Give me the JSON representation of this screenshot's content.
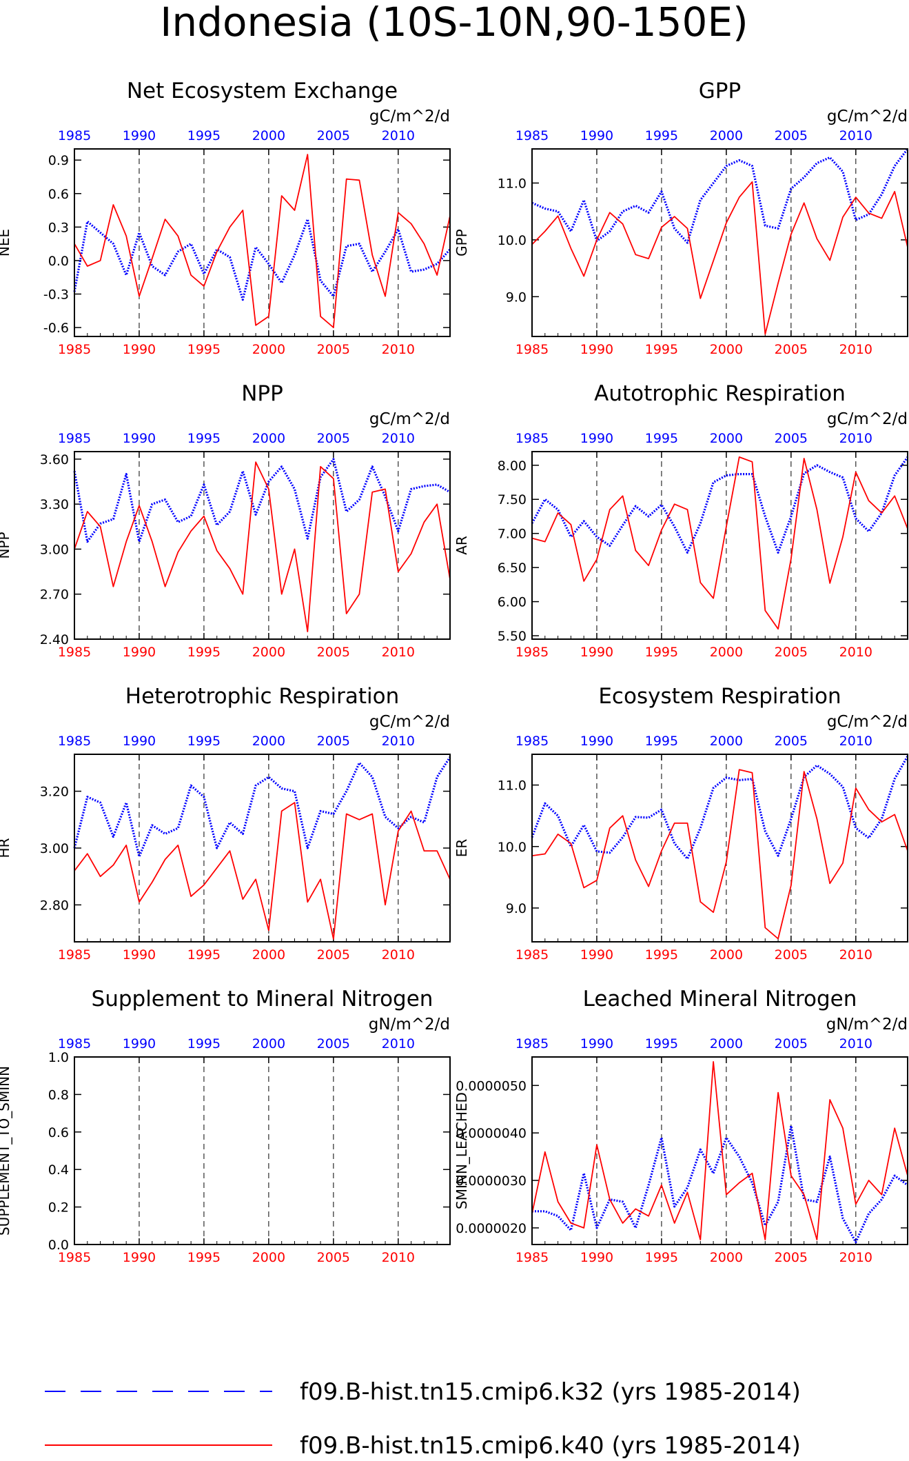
{
  "page_title": "Indonesia (10S-10N,90-150E)",
  "colors": {
    "k32": "#0000ff",
    "k40": "#ff0000",
    "frame": "#000000",
    "grid": "#000000"
  },
  "legend": {
    "items": [
      {
        "label": "f09.B-hist.tn15.cmip6.k32 (yrs 1985-2014)",
        "color": "#0000ff",
        "style": "dashed"
      },
      {
        "label": "f09.B-hist.tn15.cmip6.k40 (yrs 1985-2014)",
        "color": "#ff0000",
        "style": "solid"
      }
    ]
  },
  "chart_data": [
    {
      "type": "line",
      "title": "Net Ecosystem Exchange",
      "units": "gC/m^2/d",
      "ylabel": "NEE",
      "ylim": [
        -0.68,
        1.0
      ],
      "yticks": [
        -0.6,
        -0.3,
        0.0,
        0.3,
        0.6,
        0.9
      ],
      "yticklabels": [
        "-0.6",
        "-0.3",
        "0.0",
        "0.3",
        "0.6",
        "0.9"
      ],
      "xlim": [
        1985,
        2014
      ],
      "xticks": [
        1985,
        1990,
        1995,
        2000,
        2005,
        2010
      ],
      "x": [
        1985,
        1986,
        1987,
        1988,
        1989,
        1990,
        1991,
        1992,
        1993,
        1994,
        1995,
        1996,
        1997,
        1998,
        1999,
        2000,
        2001,
        2002,
        2003,
        2004,
        2005,
        2006,
        2007,
        2008,
        2009,
        2010,
        2011,
        2012,
        2013,
        2014
      ],
      "series": [
        {
          "name": "f09.B-hist.tn15.cmip6.k32",
          "color": "#0000ff",
          "values": [
            -0.28,
            0.35,
            0.25,
            0.15,
            -0.13,
            0.25,
            -0.05,
            -0.13,
            0.08,
            0.15,
            -0.12,
            0.1,
            0.03,
            -0.35,
            0.12,
            -0.03,
            -0.2,
            0.05,
            0.37,
            -0.18,
            -0.32,
            0.13,
            0.15,
            -0.1,
            0.08,
            0.28,
            -0.1,
            -0.08,
            -0.03,
            0.1
          ]
        },
        {
          "name": "f09.B-hist.tn15.cmip6.k40",
          "color": "#ff0000",
          "values": [
            0.15,
            -0.05,
            0.0,
            0.5,
            0.22,
            -0.32,
            0.02,
            0.37,
            0.22,
            -0.13,
            -0.23,
            0.08,
            0.3,
            0.45,
            -0.58,
            -0.5,
            0.58,
            0.45,
            0.95,
            -0.5,
            -0.6,
            0.73,
            0.72,
            0.05,
            -0.32,
            0.43,
            0.33,
            0.15,
            -0.13,
            0.4
          ]
        }
      ]
    },
    {
      "type": "line",
      "title": "GPP",
      "units": "gC/m^2/d",
      "ylabel": "GPP",
      "ylim": [
        8.3,
        11.6
      ],
      "yticks": [
        9.0,
        10.0,
        11.0
      ],
      "yticklabels": [
        "9.0",
        "10.0",
        "11.0"
      ],
      "xlim": [
        1985,
        2014
      ],
      "xticks": [
        1985,
        1990,
        1995,
        2000,
        2005,
        2010
      ],
      "x": [
        1985,
        1986,
        1987,
        1988,
        1989,
        1990,
        1991,
        1992,
        1993,
        1994,
        1995,
        1996,
        1997,
        1998,
        1999,
        2000,
        2001,
        2002,
        2003,
        2004,
        2005,
        2006,
        2007,
        2008,
        2009,
        2010,
        2011,
        2012,
        2013,
        2014
      ],
      "series": [
        {
          "name": "f09.B-hist.tn15.cmip6.k32",
          "color": "#0000ff",
          "values": [
            10.65,
            10.55,
            10.5,
            10.15,
            10.7,
            9.98,
            10.15,
            10.5,
            10.6,
            10.48,
            10.85,
            10.2,
            9.95,
            10.7,
            11.0,
            11.3,
            11.4,
            11.3,
            10.25,
            10.2,
            10.9,
            11.1,
            11.35,
            11.45,
            11.2,
            10.35,
            10.45,
            10.8,
            11.3,
            11.6
          ]
        },
        {
          "name": "f09.B-hist.tn15.cmip6.k40",
          "color": "#ff0000",
          "values": [
            9.92,
            10.15,
            10.42,
            9.85,
            9.36,
            10.0,
            10.48,
            10.28,
            9.74,
            9.67,
            10.22,
            10.41,
            10.2,
            8.97,
            9.63,
            10.3,
            10.75,
            11.02,
            8.34,
            9.24,
            10.1,
            10.65,
            10.02,
            9.64,
            10.4,
            10.75,
            10.47,
            10.38,
            10.85,
            9.87
          ]
        }
      ]
    },
    {
      "type": "line",
      "title": "NPP",
      "units": "gC/m^2/d",
      "ylabel": "NPP",
      "ylim": [
        2.4,
        3.65
      ],
      "yticks": [
        2.4,
        2.7,
        3.0,
        3.3,
        3.6
      ],
      "yticklabels": [
        "2.40",
        "2.70",
        "3.00",
        "3.30",
        "3.60"
      ],
      "xlim": [
        1985,
        2014
      ],
      "xticks": [
        1985,
        1990,
        1995,
        2000,
        2005,
        2010
      ],
      "x": [
        1985,
        1986,
        1987,
        1988,
        1989,
        1990,
        1991,
        1992,
        1993,
        1994,
        1995,
        1996,
        1997,
        1998,
        1999,
        2000,
        2001,
        2002,
        2003,
        2004,
        2005,
        2006,
        2007,
        2008,
        2009,
        2010,
        2011,
        2012,
        2013,
        2014
      ],
      "series": [
        {
          "name": "f09.B-hist.tn15.cmip6.k32",
          "color": "#0000ff",
          "values": [
            3.52,
            3.05,
            3.17,
            3.2,
            3.5,
            3.05,
            3.3,
            3.33,
            3.18,
            3.22,
            3.43,
            3.16,
            3.25,
            3.52,
            3.23,
            3.45,
            3.55,
            3.4,
            3.07,
            3.48,
            3.6,
            3.25,
            3.33,
            3.55,
            3.35,
            3.12,
            3.4,
            3.42,
            3.43,
            3.38
          ]
        },
        {
          "name": "f09.B-hist.tn15.cmip6.k40",
          "color": "#ff0000",
          "values": [
            3.0,
            3.25,
            3.15,
            2.75,
            3.05,
            3.29,
            3.05,
            2.75,
            2.98,
            3.12,
            3.22,
            2.99,
            2.87,
            2.7,
            3.58,
            3.4,
            2.7,
            3.0,
            2.45,
            3.55,
            3.47,
            2.57,
            2.7,
            3.38,
            3.4,
            2.85,
            2.97,
            3.18,
            3.3,
            2.8
          ]
        }
      ]
    },
    {
      "type": "line",
      "title": "Autotrophic Respiration",
      "units": "gC/m^2/d",
      "ylabel": "AR",
      "ylim": [
        5.45,
        8.2
      ],
      "yticks": [
        5.5,
        6.0,
        6.5,
        7.0,
        7.5,
        8.0
      ],
      "yticklabels": [
        "5.50",
        "6.00",
        "6.50",
        "7.00",
        "7.50",
        "8.00"
      ],
      "xlim": [
        1985,
        2014
      ],
      "xticks": [
        1985,
        1990,
        1995,
        2000,
        2005,
        2010
      ],
      "x": [
        1985,
        1986,
        1987,
        1988,
        1989,
        1990,
        1991,
        1992,
        1993,
        1994,
        1995,
        1996,
        1997,
        1998,
        1999,
        2000,
        2001,
        2002,
        2003,
        2004,
        2005,
        2006,
        2007,
        2008,
        2009,
        2010,
        2011,
        2012,
        2013,
        2014
      ],
      "series": [
        {
          "name": "f09.B-hist.tn15.cmip6.k32",
          "color": "#0000ff",
          "values": [
            7.15,
            7.5,
            7.35,
            6.95,
            7.18,
            6.95,
            6.82,
            7.12,
            7.4,
            7.25,
            7.42,
            7.1,
            6.72,
            7.15,
            7.75,
            7.85,
            7.87,
            7.87,
            7.25,
            6.72,
            7.25,
            7.88,
            8.0,
            7.9,
            7.82,
            7.22,
            7.03,
            7.3,
            7.85,
            8.12
          ]
        },
        {
          "name": "f09.B-hist.tn15.cmip6.k40",
          "color": "#ff0000",
          "values": [
            6.93,
            6.88,
            7.3,
            7.13,
            6.3,
            6.62,
            7.35,
            7.55,
            6.75,
            6.53,
            7.05,
            7.43,
            7.35,
            6.28,
            6.05,
            7.1,
            8.12,
            8.05,
            5.87,
            5.6,
            6.63,
            8.1,
            7.35,
            6.27,
            6.95,
            7.9,
            7.48,
            7.3,
            7.55,
            7.07
          ]
        }
      ]
    },
    {
      "type": "line",
      "title": "Heterotrophic Respiration",
      "units": "gC/m^2/d",
      "ylabel": "HR",
      "ylim": [
        2.67,
        3.33
      ],
      "yticks": [
        2.8,
        3.0,
        3.2
      ],
      "yticklabels": [
        "2.80",
        "3.00",
        "3.20"
      ],
      "xlim": [
        1985,
        2014
      ],
      "xticks": [
        1985,
        1990,
        1995,
        2000,
        2005,
        2010
      ],
      "x": [
        1985,
        1986,
        1987,
        1988,
        1989,
        1990,
        1991,
        1992,
        1993,
        1994,
        1995,
        1996,
        1997,
        1998,
        1999,
        2000,
        2001,
        2002,
        2003,
        2004,
        2005,
        2006,
        2007,
        2008,
        2009,
        2010,
        2011,
        2012,
        2013,
        2014
      ],
      "series": [
        {
          "name": "f09.B-hist.tn15.cmip6.k32",
          "color": "#0000ff",
          "values": [
            3.0,
            3.18,
            3.16,
            3.04,
            3.16,
            2.97,
            3.08,
            3.05,
            3.07,
            3.22,
            3.18,
            3.0,
            3.09,
            3.05,
            3.22,
            3.25,
            3.21,
            3.2,
            3.0,
            3.13,
            3.12,
            3.2,
            3.3,
            3.25,
            3.11,
            3.07,
            3.11,
            3.09,
            3.25,
            3.32
          ]
        },
        {
          "name": "f09.B-hist.tn15.cmip6.k40",
          "color": "#ff0000",
          "values": [
            2.92,
            2.98,
            2.9,
            2.94,
            3.01,
            2.81,
            2.88,
            2.96,
            3.01,
            2.83,
            2.87,
            2.93,
            2.99,
            2.82,
            2.89,
            2.71,
            3.13,
            3.16,
            2.81,
            2.89,
            2.68,
            3.12,
            3.1,
            3.12,
            2.8,
            3.06,
            3.13,
            2.99,
            2.99,
            2.89
          ]
        }
      ]
    },
    {
      "type": "line",
      "title": "Ecosystem Respiration",
      "units": "gC/m^2/d",
      "ylabel": "ER",
      "ylim": [
        8.45,
        11.5
      ],
      "yticks": [
        9.0,
        10.0,
        11.0
      ],
      "yticklabels": [
        "9.0",
        "10.0",
        "11.0"
      ],
      "xlim": [
        1985,
        2014
      ],
      "xticks": [
        1985,
        1990,
        1995,
        2000,
        2005,
        2010
      ],
      "x": [
        1985,
        1986,
        1987,
        1988,
        1989,
        1990,
        1991,
        1992,
        1993,
        1994,
        1995,
        1996,
        1997,
        1998,
        1999,
        2000,
        2001,
        2002,
        2003,
        2004,
        2005,
        2006,
        2007,
        2008,
        2009,
        2010,
        2011,
        2012,
        2013,
        2014
      ],
      "series": [
        {
          "name": "f09.B-hist.tn15.cmip6.k32",
          "color": "#0000ff",
          "values": [
            10.15,
            10.7,
            10.5,
            10.0,
            10.35,
            9.92,
            9.9,
            10.15,
            10.48,
            10.47,
            10.6,
            10.05,
            9.8,
            10.3,
            10.95,
            11.12,
            11.08,
            11.1,
            10.25,
            9.85,
            10.45,
            11.13,
            11.32,
            11.18,
            10.97,
            10.3,
            10.14,
            10.45,
            11.1,
            11.47
          ]
        },
        {
          "name": "f09.B-hist.tn15.cmip6.k40",
          "color": "#ff0000",
          "values": [
            9.85,
            9.88,
            10.2,
            10.05,
            9.33,
            9.45,
            10.3,
            10.5,
            9.78,
            9.35,
            9.93,
            10.38,
            10.38,
            9.1,
            8.93,
            9.75,
            11.25,
            11.2,
            8.68,
            8.5,
            9.37,
            11.22,
            10.45,
            9.4,
            9.73,
            10.95,
            10.6,
            10.4,
            10.52,
            9.93
          ]
        }
      ]
    },
    {
      "type": "line",
      "title": "Supplement to Mineral Nitrogen",
      "units": "gN/m^2/d",
      "ylabel": "SUPPLEMENT_TO_SMINN",
      "ylim": [
        0.0,
        1.0
      ],
      "yticks": [
        0.0,
        0.2,
        0.4,
        0.6,
        0.8,
        1.0
      ],
      "yticklabels": [
        "0.0",
        "0.2",
        "0.4",
        "0.6",
        "0.8",
        "1.0"
      ],
      "xlim": [
        1985,
        2014
      ],
      "xticks": [
        1985,
        1990,
        1995,
        2000,
        2005,
        2010
      ],
      "x": [],
      "series": [
        {
          "name": "f09.B-hist.tn15.cmip6.k32",
          "color": "#0000ff",
          "values": []
        },
        {
          "name": "f09.B-hist.tn15.cmip6.k40",
          "color": "#ff0000",
          "values": []
        }
      ]
    },
    {
      "type": "line",
      "title": "Leached Mineral Nitrogen",
      "units": "gN/m^2/d",
      "ylabel": "SMINN_LEACHED",
      "ylim": [
        1.65e-06,
        5.6e-06
      ],
      "yticks": [
        2e-06,
        3e-06,
        4e-06,
        5e-06
      ],
      "yticklabels": [
        "0.0000020",
        "0.0000030",
        "0.0000040",
        "0.0000050"
      ],
      "xlim": [
        1985,
        2014
      ],
      "xticks": [
        1985,
        1990,
        1995,
        2000,
        2005,
        2010
      ],
      "x": [
        1985,
        1986,
        1987,
        1988,
        1989,
        1990,
        1991,
        1992,
        1993,
        1994,
        1995,
        1996,
        1997,
        1998,
        1999,
        2000,
        2001,
        2002,
        2003,
        2004,
        2005,
        2006,
        2007,
        2008,
        2009,
        2010,
        2011,
        2012,
        2013,
        2014
      ],
      "series": [
        {
          "name": "f09.B-hist.tn15.cmip6.k32",
          "color": "#0000ff",
          "values": [
            2.35e-06,
            2.35e-06,
            2.25e-06,
            1.95e-06,
            3.15e-06,
            2e-06,
            2.6e-06,
            2.55e-06,
            2e-06,
            2.9e-06,
            3.9e-06,
            2.45e-06,
            2.85e-06,
            3.65e-06,
            3.15e-06,
            3.9e-06,
            3.5e-06,
            2.95e-06,
            2.05e-06,
            2.55e-06,
            4.15e-06,
            2.6e-06,
            2.55e-06,
            3.5e-06,
            2.2e-06,
            1.7e-06,
            2.3e-06,
            2.6e-06,
            3.1e-06,
            2.9e-06
          ]
        },
        {
          "name": "f09.B-hist.tn15.cmip6.k40",
          "color": "#ff0000",
          "values": [
            2.3e-06,
            3.6e-06,
            2.55e-06,
            2.1e-06,
            2e-06,
            3.75e-06,
            2.6e-06,
            2.1e-06,
            2.4e-06,
            2.25e-06,
            2.9e-06,
            2.1e-06,
            2.75e-06,
            1.75e-06,
            5.5e-06,
            2.7e-06,
            2.95e-06,
            3.15e-06,
            1.75e-06,
            4.85e-06,
            3.1e-06,
            2.7e-06,
            1.75e-06,
            4.7e-06,
            4.1e-06,
            2.5e-06,
            3e-06,
            2.7e-06,
            4.1e-06,
            3.1e-06
          ]
        }
      ]
    }
  ]
}
